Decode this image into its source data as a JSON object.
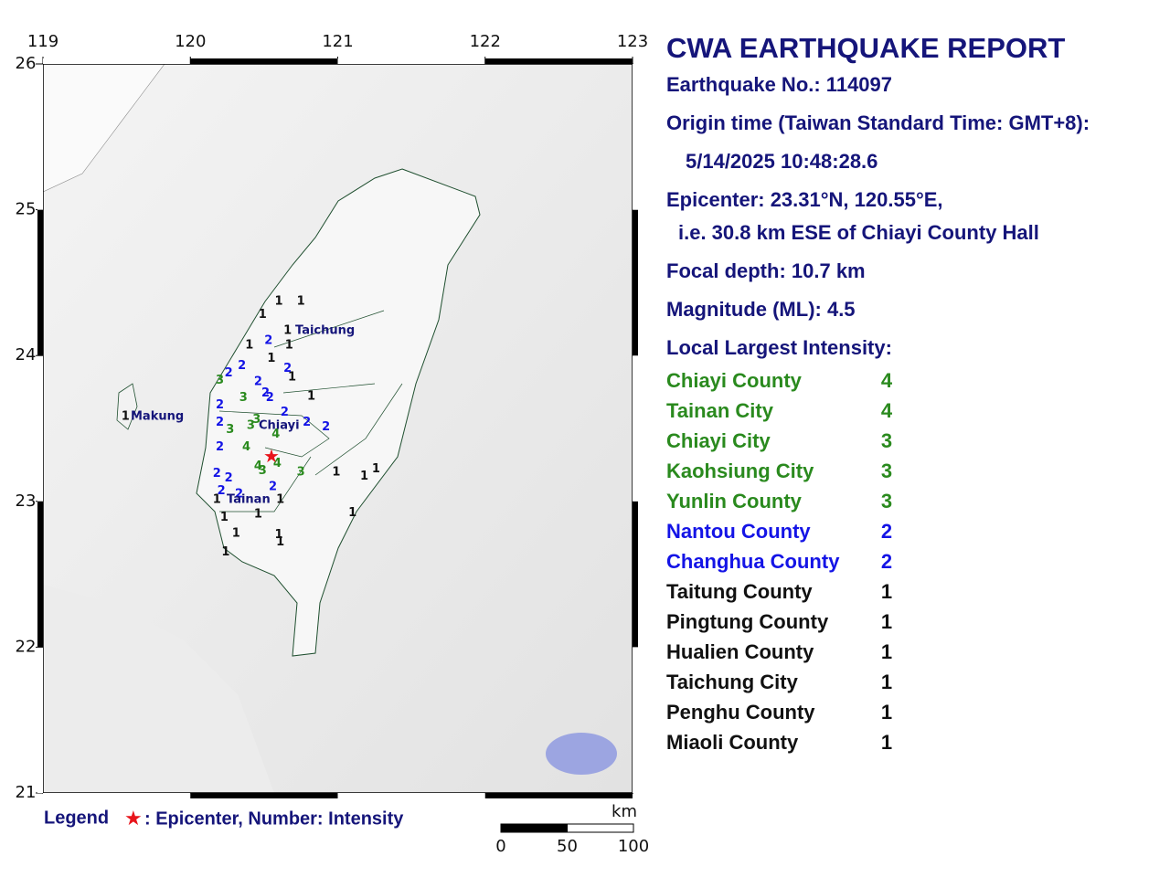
{
  "report": {
    "title": "CWA EARTHQUAKE REPORT",
    "earthquake_no": "Earthquake No.: 114097",
    "origin_time_label": "Origin time (Taiwan Standard Time: GMT+8):",
    "origin_time": "5/14/2025 10:48:28.6",
    "epicenter": "Epicenter: 23.31°N, 120.55°E,",
    "epicenter_relative": "i.e. 30.8 km ESE of Chiayi County Hall",
    "focal_depth": "Focal depth: 10.7 km",
    "magnitude": "Magnitude (ML): 4.5",
    "intensity_heading": "Local Largest Intensity:",
    "intensities": [
      {
        "region": "Chiayi County",
        "intensity": 4
      },
      {
        "region": "Tainan City",
        "intensity": 4
      },
      {
        "region": "Chiayi City",
        "intensity": 3
      },
      {
        "region": "Kaohsiung City",
        "intensity": 3
      },
      {
        "region": "Yunlin County",
        "intensity": 3
      },
      {
        "region": "Nantou County",
        "intensity": 2
      },
      {
        "region": "Changhua County",
        "intensity": 2
      },
      {
        "region": "Taitung County",
        "intensity": 1
      },
      {
        "region": "Pingtung County",
        "intensity": 1
      },
      {
        "region": "Hualien County",
        "intensity": 1
      },
      {
        "region": "Taichung City",
        "intensity": 1
      },
      {
        "region": "Penghu County",
        "intensity": 1
      },
      {
        "region": "Miaoli County",
        "intensity": 1
      }
    ]
  },
  "map": {
    "lon_lim": [
      119,
      123
    ],
    "lat_lim": [
      21,
      26
    ],
    "lon_ticks": [
      119,
      120,
      121,
      122,
      123
    ],
    "lat_ticks": [
      21,
      22,
      23,
      24,
      25,
      26
    ],
    "epicenter": {
      "lon": 120.55,
      "lat": 23.31
    },
    "epicenter_color": "#e8141b",
    "intensity_colors": {
      "1": "#111111",
      "2": "#1414e6",
      "3": "#2a8a1e",
      "4": "#2a8a1e"
    },
    "cities": {
      "taichung": "Taichung",
      "makung": "Makung",
      "chiayi": "Chiayi",
      "tainan": "Tainan"
    },
    "stations": [
      {
        "lon": 120.6,
        "lat": 24.37,
        "intensity": 1
      },
      {
        "lon": 120.75,
        "lat": 24.37,
        "intensity": 1
      },
      {
        "lon": 120.49,
        "lat": 24.28,
        "intensity": 1
      },
      {
        "lon": 120.66,
        "lat": 24.17,
        "intensity": 1
      },
      {
        "lon": 120.67,
        "lat": 24.07,
        "intensity": 1
      },
      {
        "lon": 120.4,
        "lat": 24.07,
        "intensity": 1
      },
      {
        "lon": 120.55,
        "lat": 23.98,
        "intensity": 1
      },
      {
        "lon": 120.69,
        "lat": 23.85,
        "intensity": 1
      },
      {
        "lon": 120.82,
        "lat": 23.72,
        "intensity": 1
      },
      {
        "lon": 120.99,
        "lat": 23.2,
        "intensity": 1
      },
      {
        "lon": 121.18,
        "lat": 23.17,
        "intensity": 1
      },
      {
        "lon": 121.26,
        "lat": 23.22,
        "intensity": 1
      },
      {
        "lon": 121.1,
        "lat": 22.92,
        "intensity": 1
      },
      {
        "lon": 120.61,
        "lat": 23.01,
        "intensity": 1
      },
      {
        "lon": 120.46,
        "lat": 22.91,
        "intensity": 1
      },
      {
        "lon": 120.23,
        "lat": 22.89,
        "intensity": 1
      },
      {
        "lon": 120.31,
        "lat": 22.78,
        "intensity": 1
      },
      {
        "lon": 120.6,
        "lat": 22.77,
        "intensity": 1
      },
      {
        "lon": 120.61,
        "lat": 22.72,
        "intensity": 1
      },
      {
        "lon": 120.24,
        "lat": 22.65,
        "intensity": 1
      },
      {
        "lon": 119.56,
        "lat": 23.58,
        "intensity": 1
      },
      {
        "lon": 120.18,
        "lat": 23.01,
        "intensity": 1
      },
      {
        "lon": 120.53,
        "lat": 24.1,
        "intensity": 2
      },
      {
        "lon": 120.35,
        "lat": 23.93,
        "intensity": 2
      },
      {
        "lon": 120.26,
        "lat": 23.88,
        "intensity": 2
      },
      {
        "lon": 120.66,
        "lat": 23.91,
        "intensity": 2
      },
      {
        "lon": 120.46,
        "lat": 23.82,
        "intensity": 2
      },
      {
        "lon": 120.51,
        "lat": 23.74,
        "intensity": 2
      },
      {
        "lon": 120.54,
        "lat": 23.71,
        "intensity": 2
      },
      {
        "lon": 120.2,
        "lat": 23.66,
        "intensity": 2
      },
      {
        "lon": 120.64,
        "lat": 23.61,
        "intensity": 2
      },
      {
        "lon": 120.2,
        "lat": 23.54,
        "intensity": 2
      },
      {
        "lon": 120.79,
        "lat": 23.54,
        "intensity": 2
      },
      {
        "lon": 120.92,
        "lat": 23.51,
        "intensity": 2
      },
      {
        "lon": 120.2,
        "lat": 23.37,
        "intensity": 2
      },
      {
        "lon": 120.18,
        "lat": 23.19,
        "intensity": 2
      },
      {
        "lon": 120.26,
        "lat": 23.16,
        "intensity": 2
      },
      {
        "lon": 120.21,
        "lat": 23.07,
        "intensity": 2
      },
      {
        "lon": 120.33,
        "lat": 23.05,
        "intensity": 2
      },
      {
        "lon": 120.56,
        "lat": 23.1,
        "intensity": 2
      },
      {
        "lon": 120.2,
        "lat": 23.83,
        "intensity": 3
      },
      {
        "lon": 120.36,
        "lat": 23.71,
        "intensity": 3
      },
      {
        "lon": 120.27,
        "lat": 23.49,
        "intensity": 3
      },
      {
        "lon": 120.41,
        "lat": 23.52,
        "intensity": 3
      },
      {
        "lon": 120.45,
        "lat": 23.56,
        "intensity": 3
      },
      {
        "lon": 120.49,
        "lat": 23.21,
        "intensity": 3
      },
      {
        "lon": 120.75,
        "lat": 23.2,
        "intensity": 3
      },
      {
        "lon": 120.58,
        "lat": 23.46,
        "intensity": 4
      },
      {
        "lon": 120.38,
        "lat": 23.37,
        "intensity": 4
      },
      {
        "lon": 120.46,
        "lat": 23.24,
        "intensity": 4
      },
      {
        "lon": 120.59,
        "lat": 23.26,
        "intensity": 4
      }
    ],
    "scale": {
      "unit": "km",
      "ticks": [
        0,
        50,
        100
      ]
    },
    "legend": {
      "title": "Legend",
      "text": ": Epicenter, Number: Intensity"
    }
  }
}
